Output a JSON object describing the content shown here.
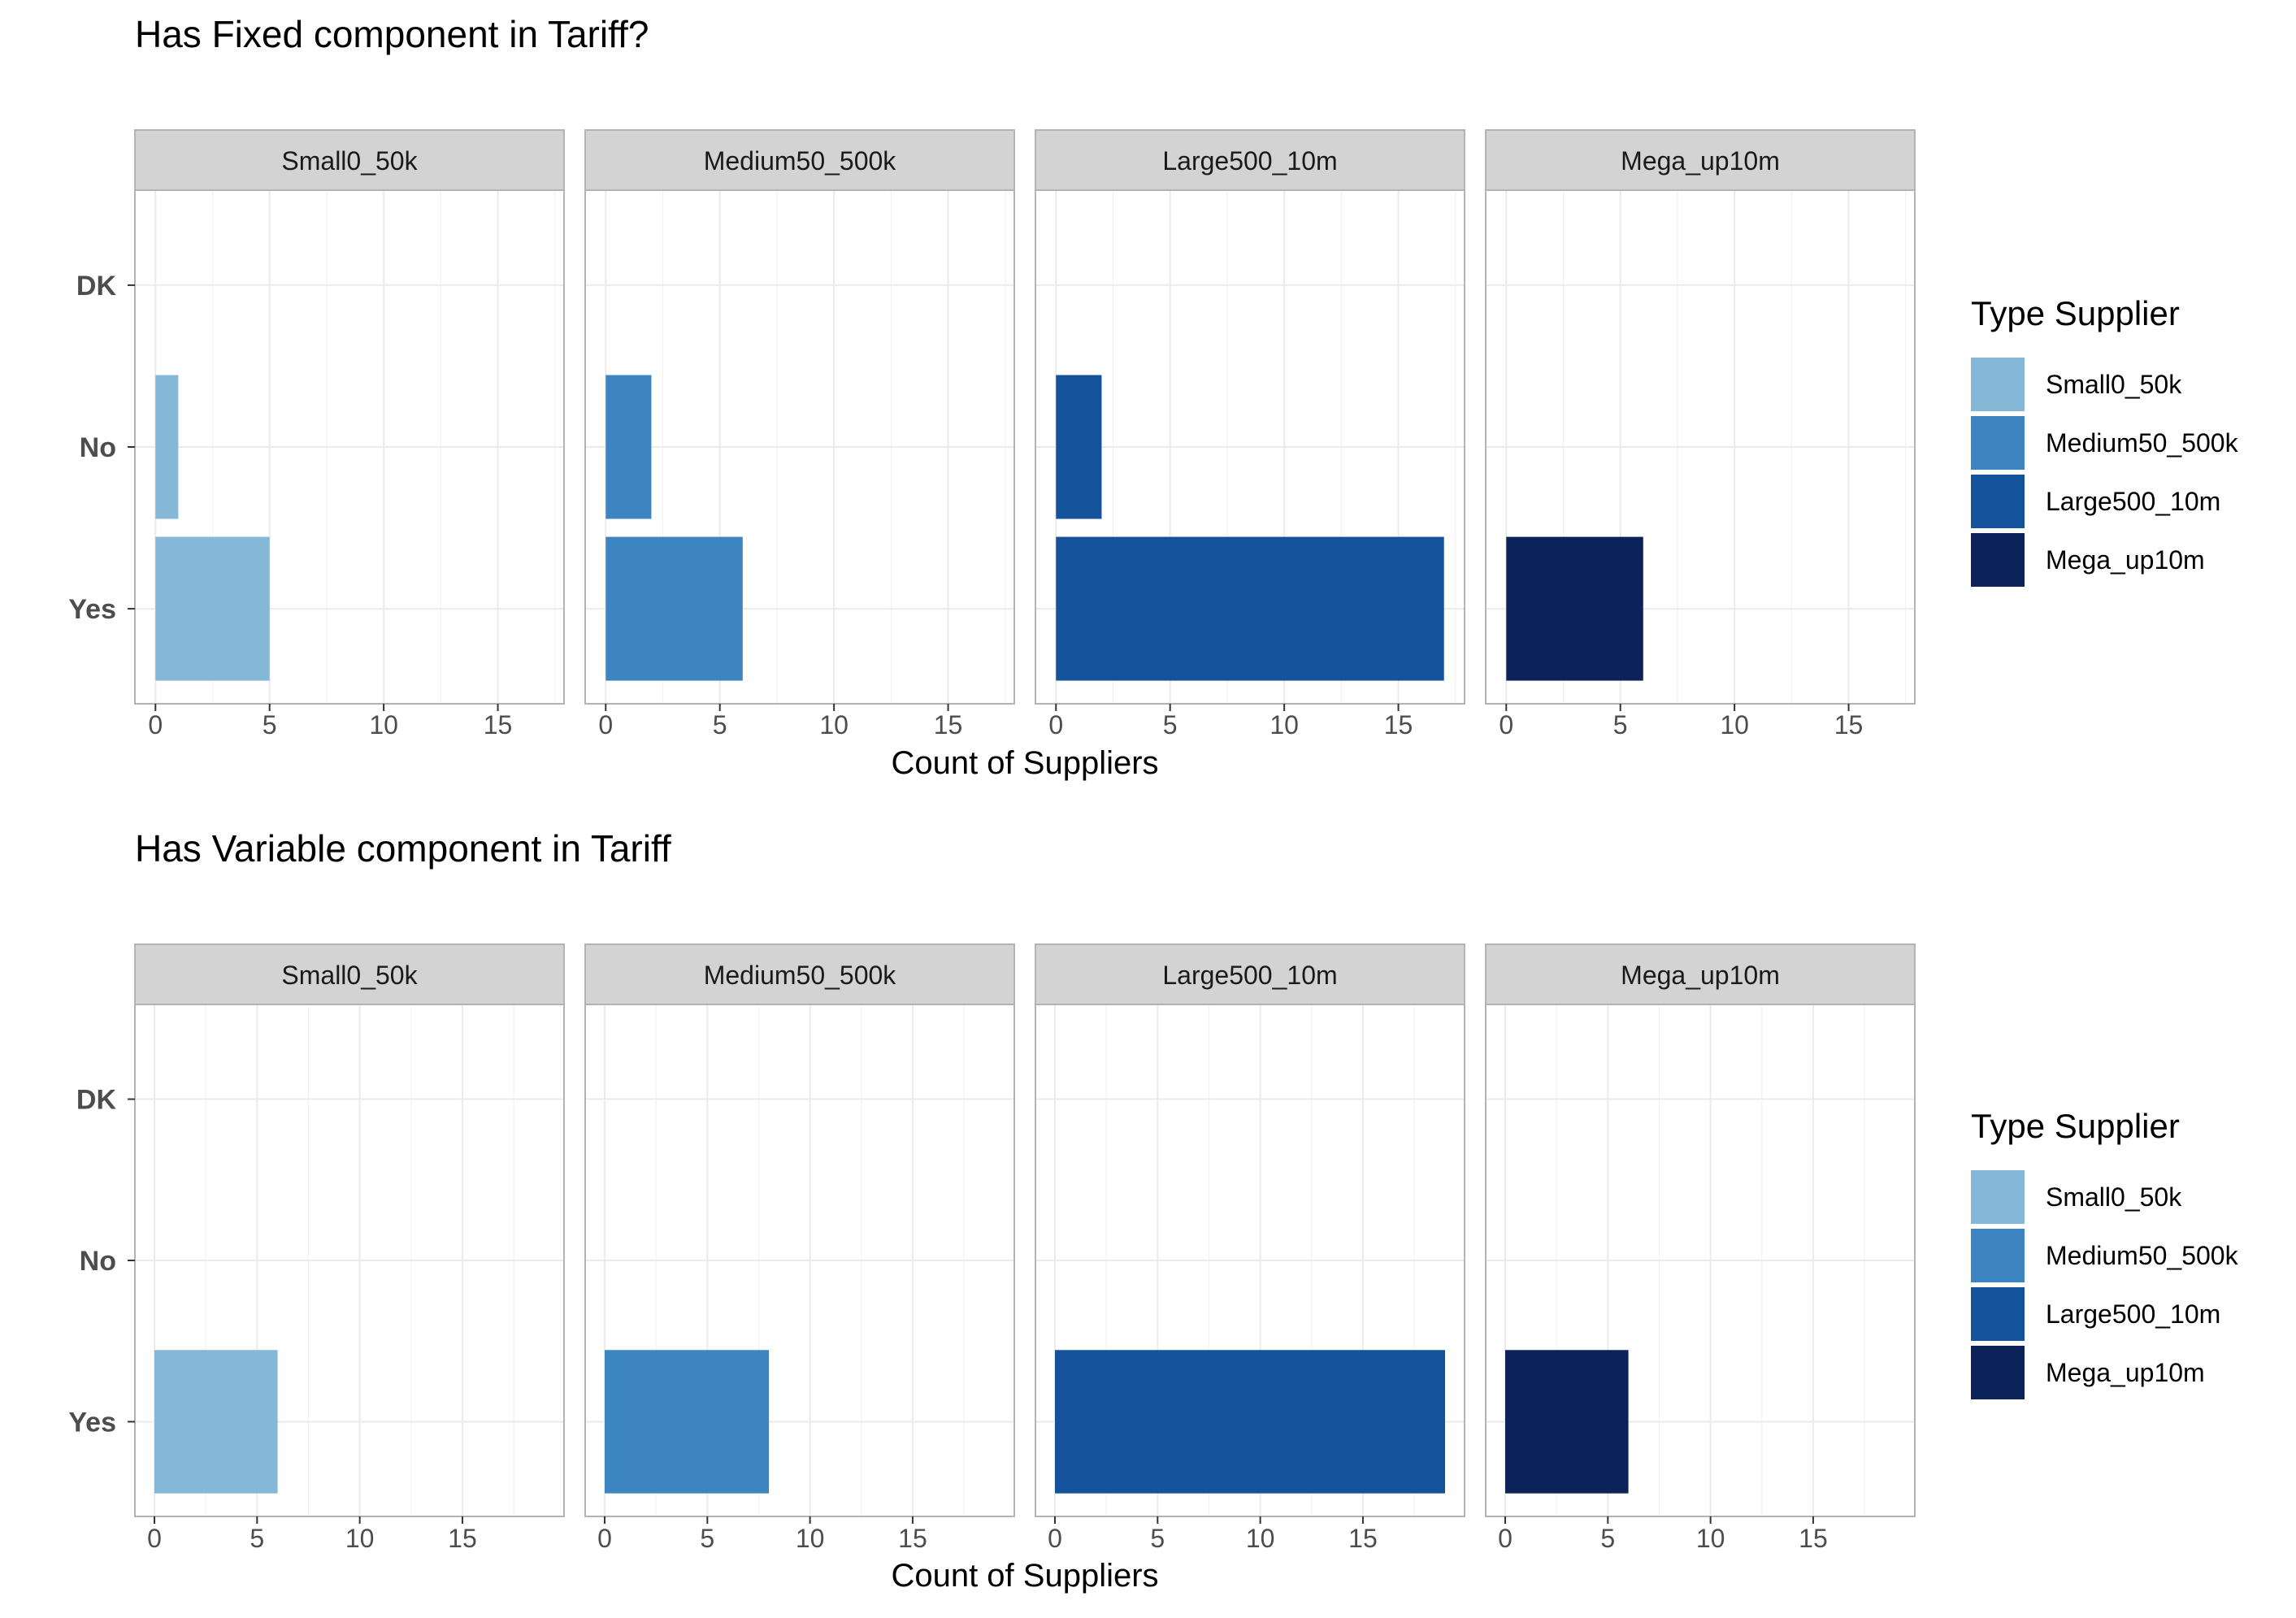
{
  "chart_data": [
    {
      "type": "bar",
      "orientation": "horizontal",
      "title": "Has Fixed component in Tariff?",
      "xlabel": "Count of Suppliers",
      "ylabel": "",
      "categories": [
        "DK",
        "No",
        "Yes"
      ],
      "xlim": [
        -0.9,
        17.9
      ],
      "xticks": [
        0,
        5,
        10,
        15
      ],
      "facets": [
        {
          "name": "Small0_50k",
          "values": [
            0,
            1,
            5
          ]
        },
        {
          "name": "Medium50_500k",
          "values": [
            0,
            2,
            6
          ]
        },
        {
          "name": "Large500_10m",
          "values": [
            0,
            2,
            17
          ]
        },
        {
          "name": "Mega_up10m",
          "values": [
            0,
            0,
            6
          ]
        }
      ],
      "legend": {
        "title": "Type Supplier",
        "placement": "right"
      },
      "grid": true
    },
    {
      "type": "bar",
      "orientation": "horizontal",
      "title": "Has Variable component in Tariff",
      "xlabel": "Count of Suppliers",
      "ylabel": "",
      "categories": [
        "DK",
        "No",
        "Yes"
      ],
      "xlim": [
        -0.95,
        19.95
      ],
      "xticks": [
        0,
        5,
        10,
        15
      ],
      "facets": [
        {
          "name": "Small0_50k",
          "values": [
            0,
            0,
            6
          ]
        },
        {
          "name": "Medium50_500k",
          "values": [
            0,
            0,
            8
          ]
        },
        {
          "name": "Large500_10m",
          "values": [
            0,
            0,
            19
          ]
        },
        {
          "name": "Mega_up10m",
          "values": [
            0,
            0,
            6
          ]
        }
      ],
      "legend": {
        "title": "Type Supplier",
        "placement": "right"
      },
      "grid": true
    }
  ],
  "series_colors": {
    "Small0_50k": "#85b7d6",
    "Medium50_500k": "#3d85c0",
    "Large500_10m": "#15529c",
    "Mega_up10m": "#0c2359"
  },
  "legend_items": [
    "Small0_50k",
    "Medium50_500k",
    "Large500_10m",
    "Mega_up10m"
  ]
}
